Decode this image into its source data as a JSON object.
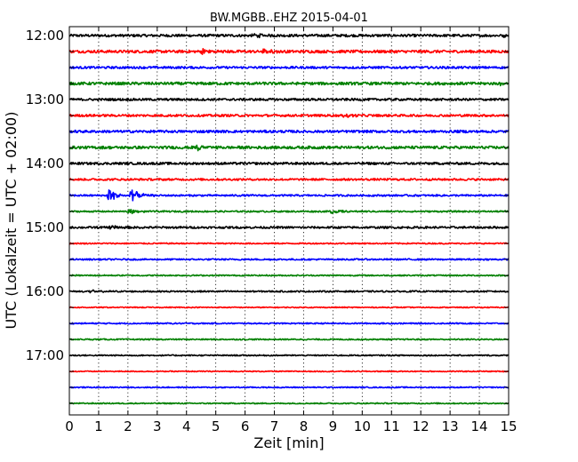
{
  "chart_data": {
    "type": "line",
    "title": "BW.MGBB..EHZ 2015-04-01",
    "xlabel": "Zeit  [min]",
    "ylabel": "UTC (Lokalzeit = UTC + 02:00)",
    "xlim": [
      0,
      15
    ],
    "xticks": [
      0,
      1,
      2,
      3,
      4,
      5,
      6,
      7,
      8,
      9,
      10,
      11,
      12,
      13,
      14,
      15
    ],
    "ytick_labels": [
      "12:00",
      "13:00",
      "14:00",
      "15:00",
      "16:00",
      "17:00"
    ],
    "trace_minutes_per_line": 15,
    "grid": "vertical dotted at each minute",
    "colors": [
      "#000000",
      "#ff0000",
      "#0000ff",
      "#008000"
    ],
    "traces": [
      {
        "start": "12:00",
        "color": "#000000",
        "noise": 0.2,
        "events": [
          {
            "t": 6.3,
            "amp": 0.35
          },
          {
            "t": 14.8,
            "amp": 0.3
          }
        ]
      },
      {
        "start": "12:15",
        "color": "#ff0000",
        "noise": 0.22,
        "events": [
          {
            "t": 4.55,
            "amp": 0.55
          },
          {
            "t": 6.6,
            "amp": 0.3
          }
        ]
      },
      {
        "start": "12:30",
        "color": "#0000ff",
        "noise": 0.18,
        "events": []
      },
      {
        "start": "12:45",
        "color": "#008000",
        "noise": 0.22,
        "events": [
          {
            "t": 14.7,
            "amp": 0.3
          }
        ]
      },
      {
        "start": "13:00",
        "color": "#000000",
        "noise": 0.18,
        "events": []
      },
      {
        "start": "13:15",
        "color": "#ff0000",
        "noise": 0.18,
        "events": [
          {
            "t": 9.4,
            "amp": 0.3
          }
        ]
      },
      {
        "start": "13:30",
        "color": "#0000ff",
        "noise": 0.2,
        "events": []
      },
      {
        "start": "13:45",
        "color": "#008000",
        "noise": 0.22,
        "events": [
          {
            "t": 4.3,
            "amp": 0.45
          }
        ]
      },
      {
        "start": "14:00",
        "color": "#000000",
        "noise": 0.18,
        "events": []
      },
      {
        "start": "14:15",
        "color": "#ff0000",
        "noise": 0.16,
        "events": []
      },
      {
        "start": "14:30",
        "color": "#0000ff",
        "noise": 0.14,
        "events": [
          {
            "t": 1.35,
            "amp": 1.1
          },
          {
            "t": 2.1,
            "amp": 1.1
          }
        ]
      },
      {
        "start": "14:45",
        "color": "#008000",
        "noise": 0.12,
        "events": [
          {
            "t": 2.05,
            "amp": 0.4
          },
          {
            "t": 8.95,
            "amp": 0.35
          }
        ]
      },
      {
        "start": "15:00",
        "color": "#000000",
        "noise": 0.16,
        "events": [
          {
            "t": 1.4,
            "amp": 0.35
          }
        ]
      },
      {
        "start": "15:15",
        "color": "#ff0000",
        "noise": 0.1,
        "events": []
      },
      {
        "start": "15:30",
        "color": "#0000ff",
        "noise": 0.12,
        "events": []
      },
      {
        "start": "15:45",
        "color": "#008000",
        "noise": 0.1,
        "events": []
      },
      {
        "start": "16:00",
        "color": "#000000",
        "noise": 0.12,
        "events": [
          {
            "t": 0.7,
            "amp": 0.25
          }
        ]
      },
      {
        "start": "16:15",
        "color": "#ff0000",
        "noise": 0.08,
        "events": []
      },
      {
        "start": "16:30",
        "color": "#0000ff",
        "noise": 0.1,
        "events": []
      },
      {
        "start": "16:45",
        "color": "#008000",
        "noise": 0.1,
        "events": []
      },
      {
        "start": "17:00",
        "color": "#000000",
        "noise": 0.1,
        "events": []
      },
      {
        "start": "17:15",
        "color": "#ff0000",
        "noise": 0.08,
        "events": []
      },
      {
        "start": "17:30",
        "color": "#0000ff",
        "noise": 0.09,
        "events": []
      },
      {
        "start": "17:45",
        "color": "#008000",
        "noise": 0.09,
        "events": []
      }
    ]
  }
}
